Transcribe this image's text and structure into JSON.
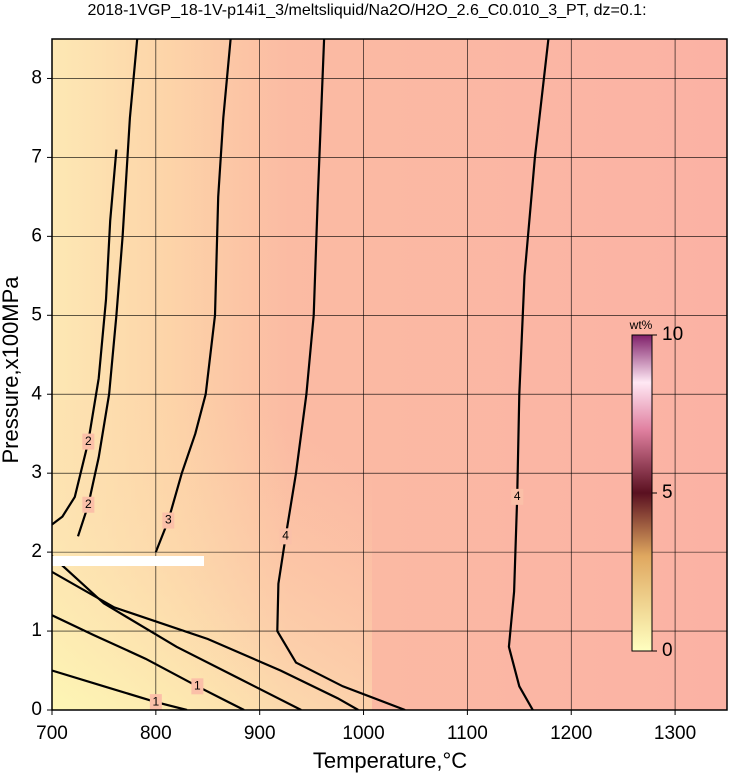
{
  "chart_data": {
    "type": "contour",
    "title": "2018-1VGP_18-1V-p14i1_3/meltsliquid/Na2O/H2O_2.6_C0.010_3_PT, dz=0.1:",
    "xlabel": "Temperature,°C",
    "ylabel": "Pressure,x100MPa",
    "xlim": [
      700,
      1350
    ],
    "ylim": [
      0,
      8.5
    ],
    "xticks": [
      700,
      800,
      900,
      1000,
      1100,
      1200,
      1300
    ],
    "yticks": [
      0,
      1,
      2,
      3,
      4,
      5,
      6,
      7,
      8
    ],
    "grid": true,
    "contours": [
      {
        "level": 4,
        "x": [
          1178,
          1165,
          1155,
          1150,
          1148,
          1145,
          1140,
          1150,
          1163
        ],
        "y": [
          8.5,
          7,
          5.5,
          4,
          2.7,
          1.5,
          0.8,
          0.3,
          0
        ]
      },
      {
        "level": 4,
        "x": [
          962,
          956,
          952,
          945,
          935,
          925,
          918,
          917,
          935,
          980,
          1040
        ],
        "y": [
          8.5,
          6.5,
          5,
          4,
          3,
          2.2,
          1.6,
          1,
          0.6,
          0.3,
          0
        ]
      },
      {
        "level": 3,
        "x": [
          872,
          865,
          860,
          857,
          848,
          838,
          825,
          812,
          800,
          null,
          700,
          760,
          850,
          920,
          975,
          995
        ],
        "y": [
          8.5,
          7.5,
          6.5,
          5,
          4,
          3.5,
          3,
          2.4,
          2,
          null,
          1.75,
          1.3,
          0.9,
          0.5,
          0.15,
          0
        ]
      },
      {
        "level": 2,
        "x": [
          782,
          775,
          768,
          762,
          755,
          745,
          735,
          725,
          null,
          700,
          750,
          820,
          880,
          940
        ],
        "y": [
          8.5,
          7.5,
          6,
          5,
          4,
          3.2,
          2.6,
          2.2,
          null,
          1.95,
          1.35,
          0.8,
          0.4,
          0
        ]
      },
      {
        "level": 2,
        "x": [
          762,
          756,
          752,
          745,
          735,
          722,
          710,
          700
        ],
        "y": [
          7.1,
          6.2,
          5.2,
          4.2,
          3.4,
          2.7,
          2.45,
          2.35
        ]
      },
      {
        "level": 1,
        "x": [
          700,
          740,
          790,
          840,
          870,
          885
        ],
        "y": [
          1.2,
          0.95,
          0.65,
          0.3,
          0.1,
          0
        ]
      },
      {
        "level": 1,
        "x": [
          700,
          750,
          800,
          830
        ],
        "y": [
          0.5,
          0.3,
          0.1,
          0
        ]
      }
    ],
    "colorbar": {
      "label": "wt%",
      "lim": [
        0,
        10
      ],
      "ticks": [
        0,
        5,
        10
      ]
    }
  }
}
